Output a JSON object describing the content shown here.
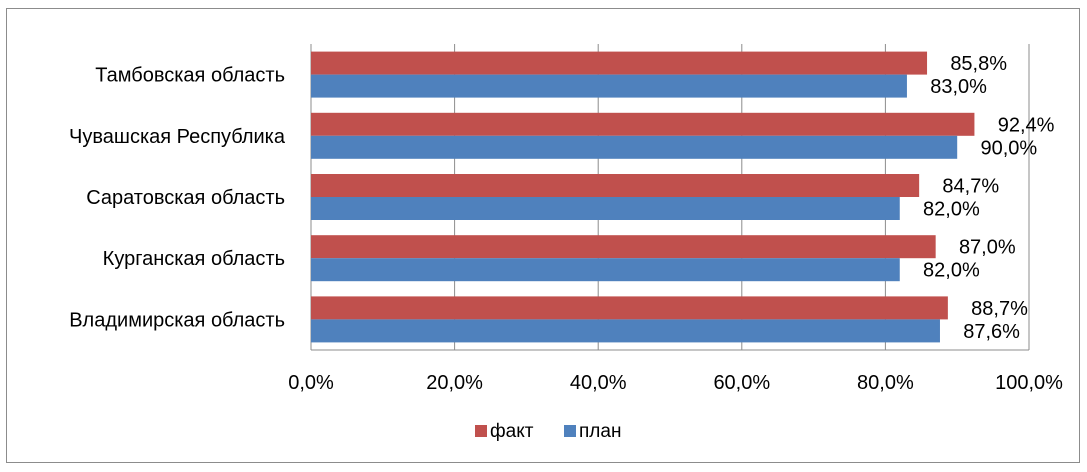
{
  "chart_data": {
    "type": "bar",
    "orientation": "horizontal",
    "categories": [
      "Тамбовская область",
      "Чувашская Республика",
      "Саратовская область",
      "Курганская область",
      "Владимирская область"
    ],
    "series": [
      {
        "name": "факт",
        "color": "#c0504d",
        "values": [
          85.8,
          92.4,
          84.7,
          87.0,
          88.7
        ],
        "labels": [
          "85,8%",
          "92,4%",
          "84,7%",
          "87,0%",
          "88,7%"
        ]
      },
      {
        "name": "план",
        "color": "#4f81bd",
        "values": [
          83.0,
          90.0,
          82.0,
          82.0,
          87.6
        ],
        "labels": [
          "83,0%",
          "90,0%",
          "82,0%",
          "82,0%",
          "87,6%"
        ]
      }
    ],
    "xlim": [
      0,
      100
    ],
    "ticks": [
      0,
      20,
      40,
      60,
      80,
      100
    ],
    "tick_labels": [
      "0,0%",
      "20,0%",
      "40,0%",
      "60,0%",
      "80,0%",
      "100,0%"
    ],
    "title": "",
    "xlabel": "",
    "ylabel": "",
    "grid": "vertical",
    "legend_position": "bottom"
  }
}
